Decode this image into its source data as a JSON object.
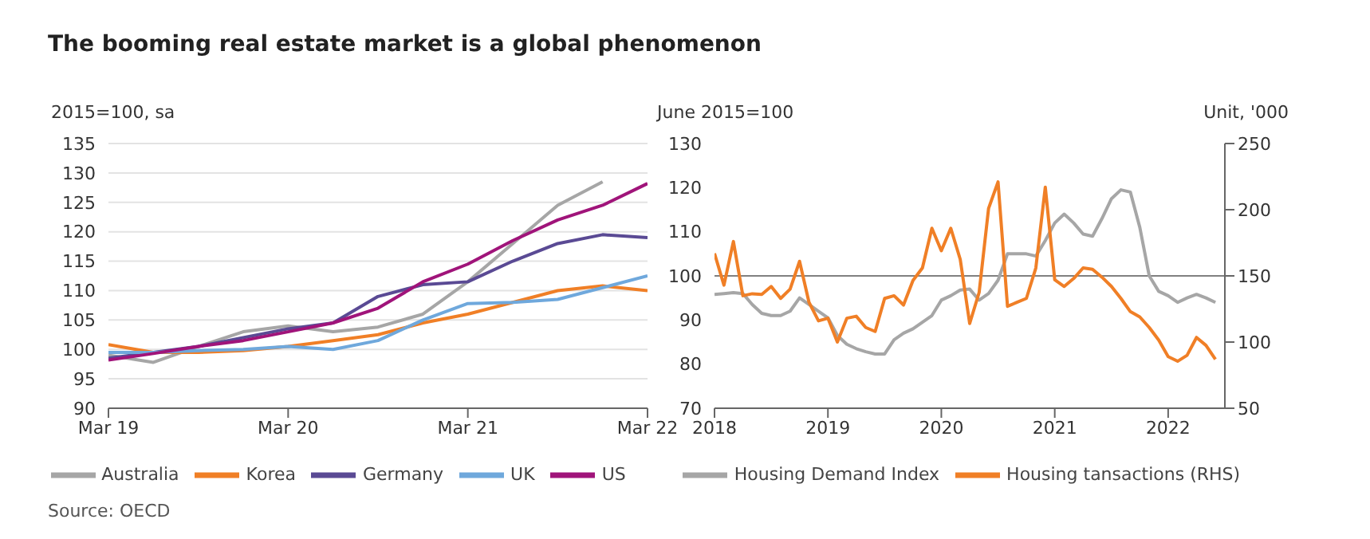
{
  "chart_data": [
    {
      "type": "line",
      "title": "The booming real estate market is a global phenomenon",
      "ylabel": "2015=100, sa",
      "annotations": [
        "Source: OECD"
      ],
      "x": [
        "2019-03",
        "2019-06",
        "2019-09",
        "2019-12",
        "2020-03",
        "2020-06",
        "2020-09",
        "2020-12",
        "2021-03",
        "2021-06",
        "2021-09",
        "2021-12",
        "2022-03"
      ],
      "xlim": [
        "2019-03",
        "2022-03"
      ],
      "xticks": [
        {
          "value": "2019-03",
          "label": "Mar 19"
        },
        {
          "value": "2020-03",
          "label": "Mar 20"
        },
        {
          "value": "2021-03",
          "label": "Mar 21"
        },
        {
          "value": "2022-03",
          "label": "Mar 22"
        }
      ],
      "ylim": [
        90,
        135
      ],
      "yticks": [
        90,
        95,
        100,
        105,
        110,
        115,
        120,
        125,
        130,
        135
      ],
      "grid": "y",
      "legend": "bottom",
      "marker": "none",
      "line_style": "solid",
      "series": [
        {
          "name": "Australia",
          "color": "#a6a6a6",
          "values": [
            99,
            97.8,
            100.5,
            103,
            104,
            103,
            103.8,
            106,
            111.5,
            118,
            124.5,
            128.5,
            null
          ]
        },
        {
          "name": "Korea",
          "color": "#f07f26",
          "values": [
            100.8,
            99.5,
            99.5,
            99.8,
            100.5,
            101.5,
            102.5,
            104.5,
            106,
            108,
            110,
            110.8,
            110
          ]
        },
        {
          "name": "Germany",
          "color": "#5a4a94",
          "values": [
            98.5,
            99.5,
            100.5,
            102,
            103.5,
            104.5,
            109,
            111,
            111.5,
            115,
            118,
            119.5,
            119
          ]
        },
        {
          "name": "UK",
          "color": "#6fa8dc",
          "values": [
            99.5,
            99.5,
            99.8,
            100,
            100.5,
            100,
            101.5,
            105,
            107.8,
            108,
            108.5,
            110.5,
            112.5
          ]
        },
        {
          "name": "US",
          "color": "#a0147a",
          "values": [
            98.2,
            99.3,
            100.5,
            101.5,
            103,
            104.5,
            107,
            111.5,
            114.5,
            118.5,
            122,
            124.5,
            128.2
          ]
        }
      ]
    },
    {
      "type": "line",
      "ylabel": "June 2015=100",
      "y2label": "Unit, '000",
      "x": [
        "2018-01",
        "2018-02",
        "2018-03",
        "2018-04",
        "2018-05",
        "2018-06",
        "2018-07",
        "2018-08",
        "2018-09",
        "2018-10",
        "2018-11",
        "2018-12",
        "2019-01",
        "2019-02",
        "2019-03",
        "2019-04",
        "2019-05",
        "2019-06",
        "2019-07",
        "2019-08",
        "2019-09",
        "2019-10",
        "2019-11",
        "2019-12",
        "2020-01",
        "2020-02",
        "2020-03",
        "2020-04",
        "2020-05",
        "2020-06",
        "2020-07",
        "2020-08",
        "2020-09",
        "2020-10",
        "2020-11",
        "2020-12",
        "2021-01",
        "2021-02",
        "2021-03",
        "2021-04",
        "2021-05",
        "2021-06",
        "2021-07",
        "2021-08",
        "2021-09",
        "2021-10",
        "2021-11",
        "2021-12",
        "2022-01",
        "2022-02",
        "2022-03",
        "2022-04",
        "2022-05",
        "2022-06"
      ],
      "xlim": [
        "2018-01",
        "2022-07"
      ],
      "xticks": [
        {
          "value": "2018-01",
          "label": "2018"
        },
        {
          "value": "2019-01",
          "label": "2019"
        },
        {
          "value": "2020-01",
          "label": "2020"
        },
        {
          "value": "2021-01",
          "label": "2021"
        },
        {
          "value": "2022-01",
          "label": "2022"
        }
      ],
      "ylim": [
        70,
        130
      ],
      "yticks": [
        70,
        80,
        90,
        100,
        110,
        120,
        130
      ],
      "y2lim": [
        50,
        250
      ],
      "y2ticks": [
        50,
        100,
        150,
        200,
        250
      ],
      "ref_lines": [
        {
          "axis": "y",
          "value": 100,
          "color": "#808080"
        }
      ],
      "grid": false,
      "legend": "bottom",
      "marker": "none",
      "line_style": "solid",
      "series": [
        {
          "name": "Housing Demand Index",
          "color": "#a6a6a6",
          "values": [
            95.8,
            96,
            96.2,
            96,
            93.5,
            91.5,
            91,
            91,
            92,
            95,
            93.5,
            92,
            90.5,
            86.5,
            84.5,
            83.5,
            82.8,
            82.3,
            82.3,
            85.5,
            87,
            88,
            89.5,
            91,
            94.5,
            95.5,
            96.8,
            97,
            94.5,
            96,
            99,
            105,
            105,
            105,
            104.5,
            108,
            112,
            114,
            112,
            109.5,
            109,
            113,
            117.5,
            119.5,
            119,
            111,
            100,
            96.5,
            95.5,
            94,
            95,
            95.8,
            95,
            94
          ]
        },
        {
          "name": "Housing tansactions (RHS)",
          "color": "#f07f26",
          "axis": "y2",
          "values": [
            167,
            143,
            176,
            135,
            136.5,
            136,
            142,
            133,
            140,
            161,
            130,
            116,
            118,
            100,
            118,
            119.5,
            111,
            108,
            133,
            135,
            128,
            146.5,
            156,
            186,
            169,
            186,
            162.5,
            114,
            137.5,
            201,
            221,
            127,
            130,
            133,
            156,
            217,
            147,
            142,
            148,
            156,
            155,
            149,
            142,
            133,
            123,
            119,
            111,
            101.5,
            89,
            85.5,
            90,
            103.5,
            97.5,
            87
          ]
        }
      ]
    }
  ]
}
